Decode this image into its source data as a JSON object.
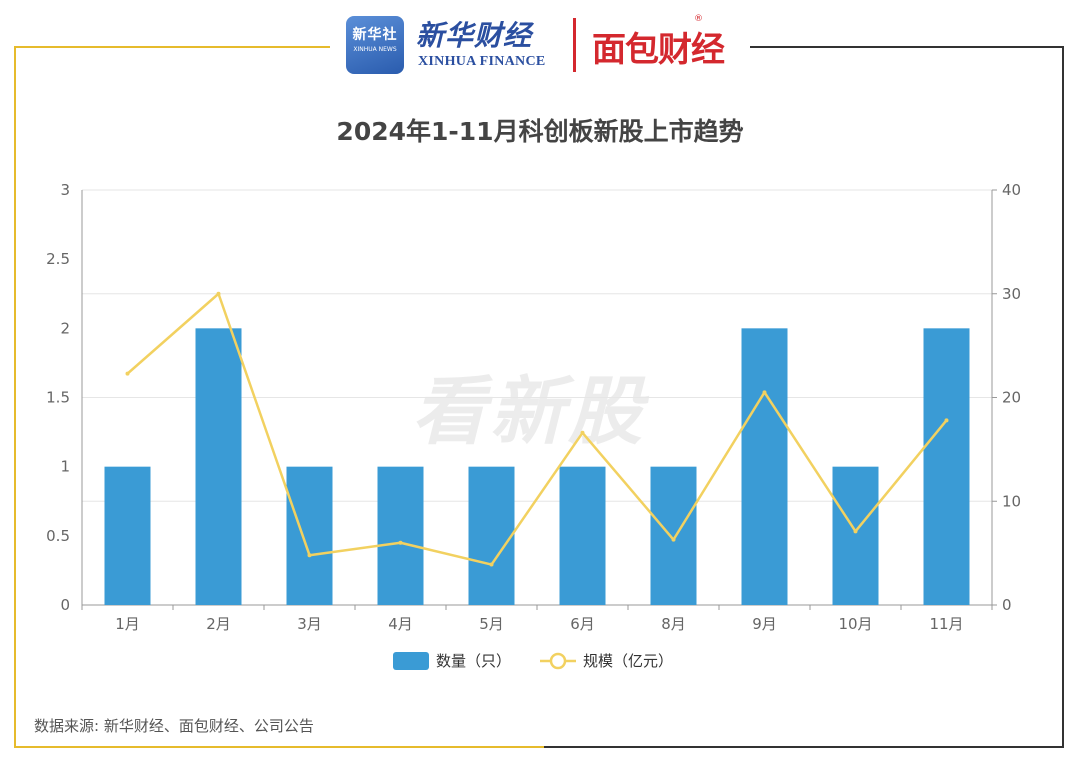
{
  "header": {
    "xinhua_badge_cn": "新华社",
    "xinhua_badge_en": "XINHUA NEWS",
    "xinhua_name": "新华财经",
    "xinhua_english": "XINHUA FINANCE",
    "partner_name": "面包财经",
    "partner_mark": "®"
  },
  "watermark": "看新股",
  "source": "数据来源: 新华财经、面包财经、公司公告",
  "colors": {
    "bar": "#3a9bd5",
    "line": "#f2d160",
    "frame_accent": "#e6bb2c",
    "brand_red": "#d4282e"
  },
  "chart_data": {
    "type": "bar",
    "title": "2024年1-11月科创板新股上市趋势",
    "categories": [
      "1月",
      "2月",
      "3月",
      "4月",
      "5月",
      "6月",
      "8月",
      "9月",
      "10月",
      "11月"
    ],
    "y_left": {
      "range": [
        0,
        3
      ],
      "ticks": [
        "0",
        "0.5",
        "1",
        "1.5",
        "2",
        "2.5",
        "3"
      ]
    },
    "y_right": {
      "range": [
        0,
        40
      ],
      "ticks": [
        "0",
        "10",
        "20",
        "30",
        "40"
      ]
    },
    "series": [
      {
        "name": "数量（只）",
        "kind": "bar",
        "axis": "left",
        "values": [
          1,
          2,
          1,
          1,
          1,
          1,
          1,
          2,
          1,
          2
        ]
      },
      {
        "name": "规模（亿元）",
        "kind": "line",
        "axis": "right",
        "values": [
          22.3,
          30.0,
          4.8,
          6.0,
          3.9,
          16.6,
          6.3,
          20.5,
          7.1,
          17.8
        ]
      }
    ],
    "grid": true,
    "legend": "bottom-center"
  }
}
